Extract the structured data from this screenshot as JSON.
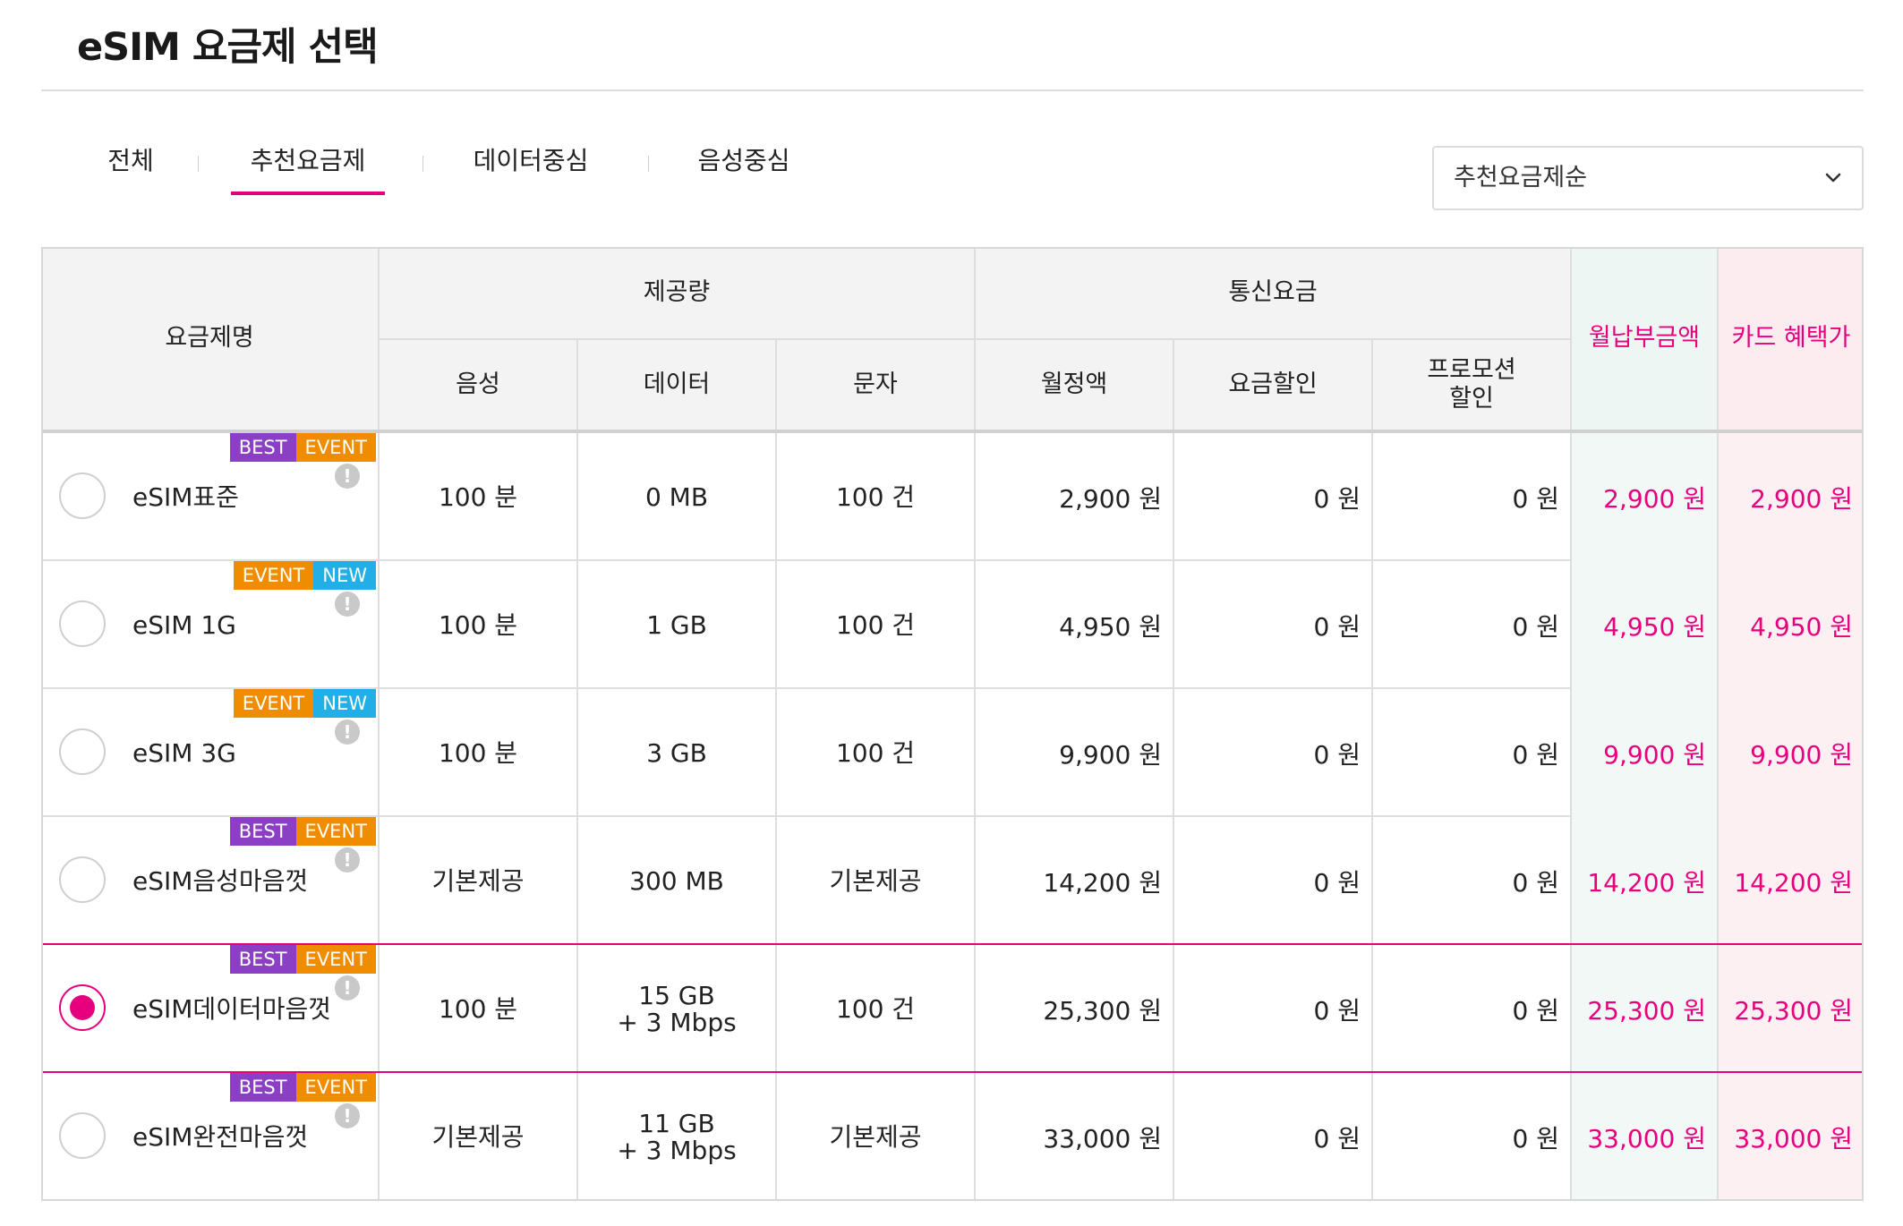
{
  "page": {
    "title": "eSIM 요금제 선택"
  },
  "tabs": [
    {
      "label": "전체"
    },
    {
      "label": "추천요금제",
      "active": true
    },
    {
      "label": "데이터중심"
    },
    {
      "label": "음성중심"
    }
  ],
  "sort": {
    "selected": "추천요금제순",
    "icon": "chevron-down-icon"
  },
  "colors": {
    "accent": "#e6007e",
    "best": "#8a3fc5",
    "event": "#f08c00",
    "new": "#22aee6"
  },
  "table": {
    "headers": {
      "plan_name": "요금제명",
      "provided": "제공량",
      "voice": "음성",
      "data": "데이터",
      "sms": "문자",
      "fees": "통신요금",
      "monthly_fee": "월정액",
      "discount": "요금할인",
      "promo_line1": "프로모션",
      "promo_line2": "할인",
      "monthly_payment": "월납부금액",
      "card_price": "카드 혜택가"
    },
    "rows": [
      {
        "badges": [
          "BEST",
          "EVENT"
        ],
        "name": "eSIM표준",
        "voice": "100 분",
        "data": "0 MB",
        "data2": "",
        "sms": "100 건",
        "monthly": "2,900 원",
        "discount": "0 원",
        "promo": "0 원",
        "payment": "2,900 원",
        "card": "2,900 원",
        "selected": false
      },
      {
        "badges": [
          "EVENT",
          "NEW"
        ],
        "name": "eSIM 1G",
        "voice": "100 분",
        "data": "1 GB",
        "data2": "",
        "sms": "100 건",
        "monthly": "4,950 원",
        "discount": "0 원",
        "promo": "0 원",
        "payment": "4,950 원",
        "card": "4,950 원",
        "selected": false
      },
      {
        "badges": [
          "EVENT",
          "NEW"
        ],
        "name": "eSIM 3G",
        "voice": "100 분",
        "data": "3 GB",
        "data2": "",
        "sms": "100 건",
        "monthly": "9,900 원",
        "discount": "0 원",
        "promo": "0 원",
        "payment": "9,900 원",
        "card": "9,900 원",
        "selected": false
      },
      {
        "badges": [
          "BEST",
          "EVENT"
        ],
        "name": "eSIM음성마음껏",
        "voice": "기본제공",
        "data": "300 MB",
        "data2": "",
        "sms": "기본제공",
        "monthly": "14,200 원",
        "discount": "0 원",
        "promo": "0 원",
        "payment": "14,200 원",
        "card": "14,200 원",
        "selected": false
      },
      {
        "badges": [
          "BEST",
          "EVENT"
        ],
        "name": "eSIM데이터마음껏",
        "voice": "100 분",
        "data": "15 GB",
        "data2": "+ 3 Mbps",
        "sms": "100 건",
        "monthly": "25,300 원",
        "discount": "0 원",
        "promo": "0 원",
        "payment": "25,300 원",
        "card": "25,300 원",
        "selected": true
      },
      {
        "badges": [
          "BEST",
          "EVENT"
        ],
        "name": "eSIM완전마음껏",
        "voice": "기본제공",
        "data": "11 GB",
        "data2": "+ 3 Mbps",
        "sms": "기본제공",
        "monthly": "33,000 원",
        "discount": "0 원",
        "promo": "0 원",
        "payment": "33,000 원",
        "card": "33,000 원",
        "selected": false
      }
    ]
  }
}
